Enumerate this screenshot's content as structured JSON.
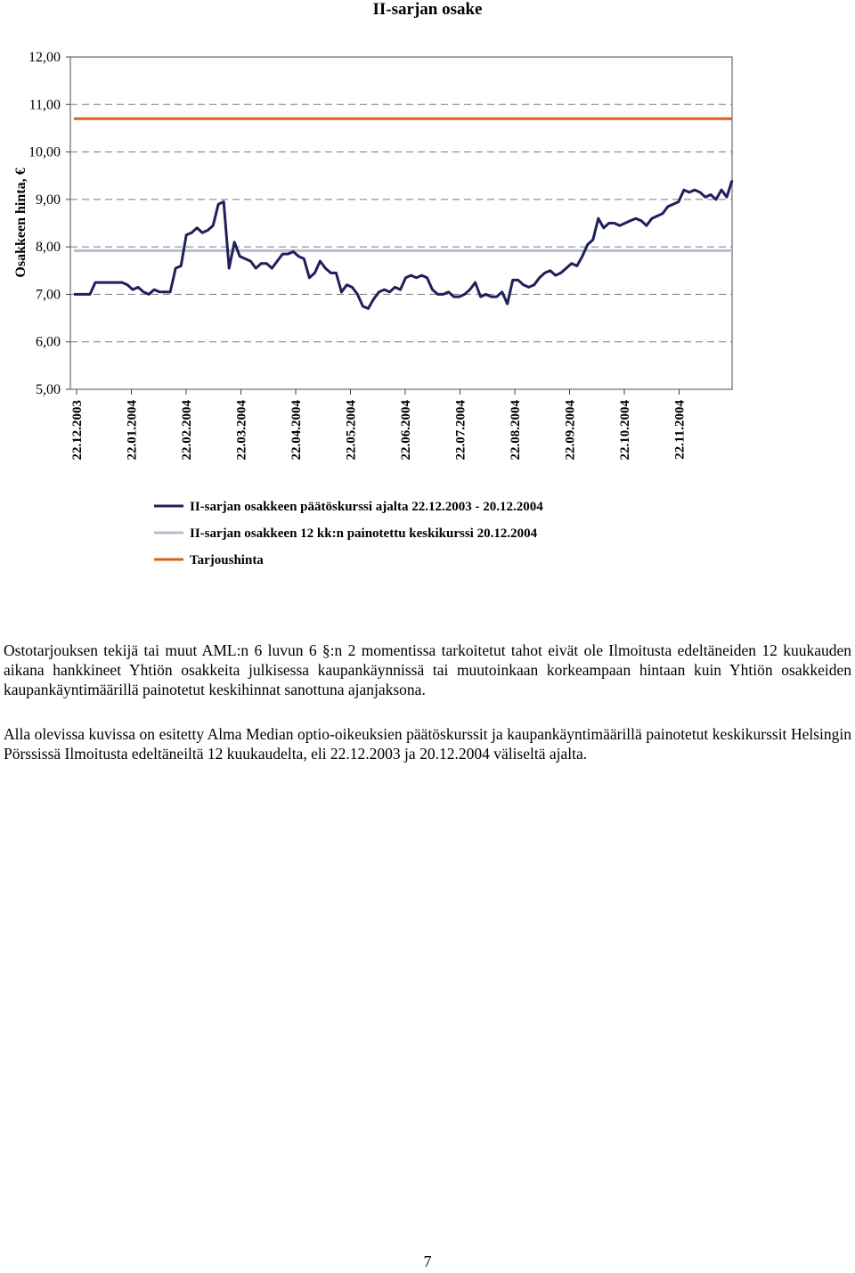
{
  "chart_data": {
    "type": "line",
    "title": "II-sarjan osake",
    "ylabel": "Osakkeen hinta, €",
    "xlabel": "",
    "ylim": [
      5,
      12
    ],
    "y_ticks": [
      "5,00",
      "6,00",
      "7,00",
      "8,00",
      "9,00",
      "10,00",
      "11,00",
      "12,00"
    ],
    "x_ticks": [
      "22.12.2003",
      "22.01.2004",
      "22.02.2004",
      "22.03.2004",
      "22.04.2004",
      "22.05.2004",
      "22.06.2004",
      "22.07.2004",
      "22.08.2004",
      "22.09.2004",
      "22.10.2004",
      "22.11.2004"
    ],
    "grid": "horizontal dashed",
    "legend_position": "bottom",
    "series": [
      {
        "name": "II-sarjan osakkeen päätöskurssi ajalta 22.12.2003 - 20.12.2004",
        "color": "#1f1f5c",
        "values": [
          7.0,
          7.0,
          7.0,
          7.0,
          7.25,
          7.25,
          7.25,
          7.25,
          7.25,
          7.25,
          7.2,
          7.1,
          7.15,
          7.05,
          7.0,
          7.1,
          7.05,
          7.05,
          7.05,
          7.55,
          7.6,
          8.25,
          8.3,
          8.4,
          8.3,
          8.35,
          8.45,
          8.9,
          8.95,
          7.55,
          8.1,
          7.8,
          7.75,
          7.7,
          7.55,
          7.65,
          7.65,
          7.55,
          7.7,
          7.85,
          7.85,
          7.9,
          7.8,
          7.75,
          7.35,
          7.45,
          7.7,
          7.55,
          7.45,
          7.45,
          7.05,
          7.2,
          7.15,
          7.0,
          6.75,
          6.7,
          6.9,
          7.05,
          7.1,
          7.05,
          7.15,
          7.1,
          7.35,
          7.4,
          7.35,
          7.4,
          7.35,
          7.1,
          7.0,
          7.0,
          7.05,
          6.95,
          6.95,
          7.0,
          7.1,
          7.25,
          6.95,
          7.0,
          6.95,
          6.95,
          7.05,
          6.8,
          7.3,
          7.3,
          7.2,
          7.15,
          7.2,
          7.35,
          7.45,
          7.5,
          7.4,
          7.45,
          7.55,
          7.65,
          7.6,
          7.8,
          8.05,
          8.15,
          8.6,
          8.4,
          8.5,
          8.5,
          8.45,
          8.5,
          8.55,
          8.6,
          8.55,
          8.45,
          8.6,
          8.65,
          8.7,
          8.85,
          8.9,
          8.95,
          9.2,
          9.15,
          9.2,
          9.15,
          9.05,
          9.1,
          9.0,
          9.2,
          9.05,
          9.4
        ]
      },
      {
        "name": "II-sarjan osakkeen 12 kk:n painotettu keskikurssi 20.12.2004",
        "color": "#b6bdd2",
        "values": [
          7.92,
          7.92
        ]
      },
      {
        "name": "Tarjoushinta",
        "color": "#d95f1e",
        "values": [
          10.7,
          10.7
        ]
      }
    ]
  },
  "text": {
    "para1": "Ostotarjouksen tekijä tai muut AML:n 6 luvun 6 §:n 2 momentissa tarkoitetut tahot eivät ole Ilmoitusta edeltäneiden 12 kuukauden aikana hankkineet Yhtiön osakkeita julkisessa kaupankäynnissä tai muutoinkaan korkeampaan hintaan kuin Yhtiön osakkeiden kaupankäyntimäärillä painotetut keskihinnat sanottuna ajanjaksona.",
    "para2": "Alla olevissa kuvissa on esitetty Alma Median optio-oikeuksien päätöskurssit ja kaupankäyntimäärillä painotetut keskikurssit Helsingin Pörssissä Ilmoitusta edeltäneiltä 12 kuukaudelta, eli 22.12.2003 ja 20.12.2004 väliseltä ajalta.",
    "page_number": "7"
  }
}
